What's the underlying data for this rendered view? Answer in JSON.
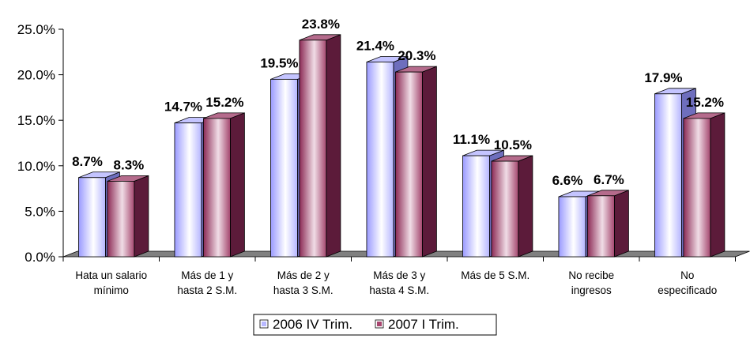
{
  "chart_data": {
    "type": "bar",
    "title": "",
    "xlabel": "",
    "ylabel": "",
    "ylim": [
      0,
      25
    ],
    "yticks": [
      "0.0%",
      "5.0%",
      "10.0%",
      "15.0%",
      "20.0%",
      "25.0%"
    ],
    "grid": false,
    "legend": "bottom",
    "categories": [
      [
        "Hata un salario",
        "mínimo"
      ],
      [
        "Más de 1 y",
        "hasta 2 S.M."
      ],
      [
        "Más de 2 y",
        "hasta 3 S.M."
      ],
      [
        "Más de 3 y",
        "hasta 4 S.M."
      ],
      [
        "Más de 5 S.M."
      ],
      [
        "No recibe",
        "ingresos"
      ],
      [
        "No",
        "especificado"
      ]
    ],
    "series": [
      {
        "name": "2006 IV Trim.",
        "values": [
          8.7,
          14.7,
          19.5,
          21.4,
          11.1,
          6.6,
          17.9
        ],
        "labels": [
          "8.7%",
          "14.7%",
          "19.5%",
          "21.4%",
          "11.1%",
          "6.6%",
          "17.9%"
        ],
        "color": "#9999ff"
      },
      {
        "name": "2007 I Trim.",
        "values": [
          8.3,
          15.2,
          23.8,
          20.3,
          10.5,
          6.7,
          15.2
        ],
        "labels": [
          "8.3%",
          "15.2%",
          "23.8%",
          "20.3%",
          "10.5%",
          "6.7%",
          "15.2%"
        ],
        "color": "#993366"
      }
    ]
  }
}
